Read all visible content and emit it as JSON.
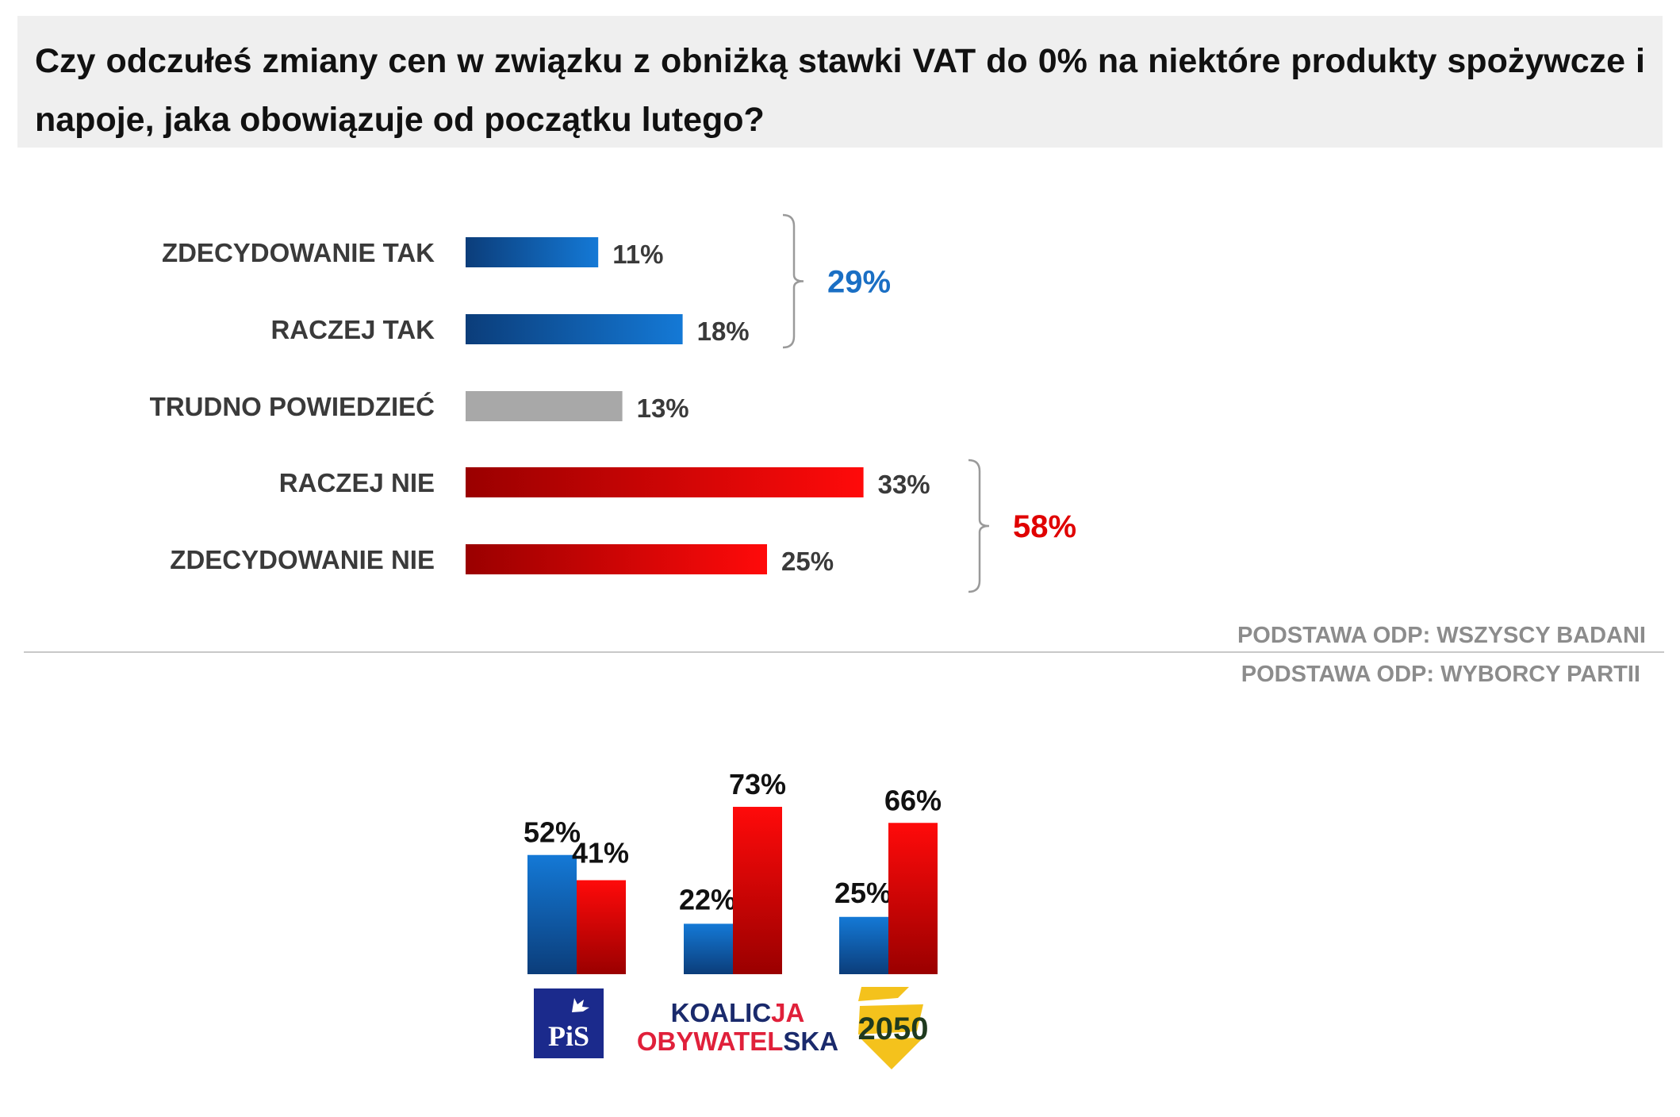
{
  "question": "Czy odczułeś zmiany cen w związku z obniżką stawki VAT do 0% na niektóre produkty spożywcze i napoje, jaka obowiązuje od początku lutego?",
  "colors": {
    "yes_dark": "#0b3d7a",
    "yes_light": "#1479d6",
    "neutral": "#a8a8a8",
    "no_dark": "#9a0000",
    "no_light": "#ff0a0a",
    "yes_total": "#1a6fc4",
    "no_total": "#e00000",
    "bracket": "#9a9a9a",
    "divider": "#c8c8c8"
  },
  "chart_data": [
    {
      "type": "bar",
      "orientation": "horizontal",
      "categories": [
        "ZDECYDOWANIE TAK",
        "RACZEJ TAK",
        "TRUDNO POWIEDZIEĆ",
        "RACZEJ NIE",
        "ZDECYDOWANIE NIE"
      ],
      "values": [
        11,
        18,
        13,
        33,
        25
      ],
      "value_labels": [
        "11%",
        "18%",
        "13%",
        "33%",
        "25%"
      ],
      "groups": [
        {
          "categories": [
            "ZDECYDOWANIE TAK",
            "RACZEJ TAK"
          ],
          "total": 29,
          "total_label": "29%"
        },
        {
          "categories": [
            "RACZEJ NIE",
            "ZDECYDOWANIE NIE"
          ],
          "total": 58,
          "total_label": "58%"
        }
      ],
      "note": "PODSTAWA ODP: WSZYSCY BADANI"
    },
    {
      "type": "bar",
      "orientation": "vertical",
      "categories": [
        "PiS",
        "KOALICJA OBYWATELSKA",
        "2050"
      ],
      "series": [
        {
          "values": [
            52,
            22,
            25
          ],
          "value_labels": [
            "52%",
            "22%",
            "25%"
          ]
        },
        {
          "values": [
            41,
            73,
            66
          ],
          "value_labels": [
            "41%",
            "73%",
            "66%"
          ]
        }
      ],
      "note": "PODSTAWA ODP: WYBORCY PARTII"
    }
  ],
  "logos": {
    "pis": "PiS",
    "ko_line1_a": "KOALIC",
    "ko_line1_b": "JA",
    "ko_line2_a": "OBYWATEL",
    "ko_line2_b": "SKA",
    "p2050": "2050"
  }
}
